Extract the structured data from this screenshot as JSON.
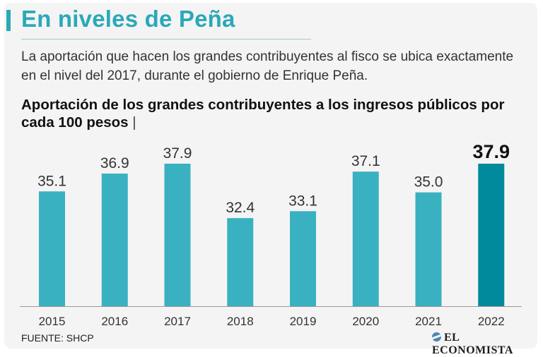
{
  "header": {
    "title": "En niveles de Peña",
    "subtitle": "La aportación que hacen los grandes contribuyentes al fisco se ubica exactamente en el nivel del 2017, durante el gobierno de Enrique Peña."
  },
  "chart_data": {
    "type": "bar",
    "title": "Aportación de los grandes contribuyentes a los ingresos públicos por cada 100 pesos",
    "title_suffix": "|",
    "xlabel": "",
    "ylabel": "",
    "categories": [
      "2015",
      "2016",
      "2017",
      "2018",
      "2019",
      "2020",
      "2021",
      "2022"
    ],
    "values": [
      35.1,
      36.9,
      37.9,
      32.4,
      33.1,
      37.1,
      35.0,
      37.9
    ],
    "value_labels": [
      "35.1",
      "36.9",
      "37.9",
      "32.4",
      "33.1",
      "37.1",
      "35.0",
      "37.9"
    ],
    "highlight_index": 7,
    "ylim": [
      23.5,
      37.9
    ],
    "grid": false,
    "colors": {
      "bar": "#3ab1c0",
      "highlight": "#008a9c"
    }
  },
  "footer": {
    "source": "FUENTE: SHCP",
    "brand": "EL ECONOMISTA"
  }
}
